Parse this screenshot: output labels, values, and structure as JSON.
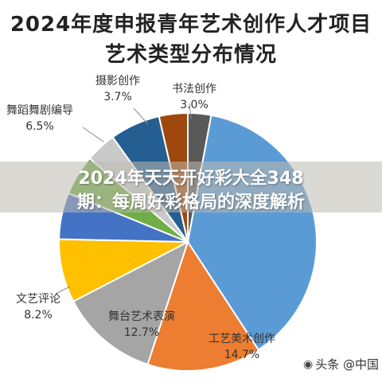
{
  "chart_data": {
    "type": "pie",
    "title": "2024年度申报青年艺术创作人才项目",
    "subtitle": "艺术类型分布情况",
    "slices": [
      {
        "name": "书法创作",
        "label": "3.0%",
        "value": 3.0,
        "color": "#595959"
      },
      {
        "name": "",
        "label": "",
        "value": 39.0,
        "color": "#5b9bd5"
      },
      {
        "name": "工艺美术创作",
        "label": "14.7%",
        "value": 14.7,
        "color": "#ed7d31"
      },
      {
        "name": "舞台艺术表演",
        "label": "12.7%",
        "value": 12.7,
        "color": "#a5a5a5"
      },
      {
        "name": "文艺评论",
        "label": "8.2%",
        "value": 8.2,
        "color": "#ffc000"
      },
      {
        "name": "",
        "label": "",
        "value": 6.0,
        "color": "#4472c4"
      },
      {
        "name": "",
        "label": "",
        "value": 5.2,
        "color": "#70ad47"
      },
      {
        "name": "",
        "label": "",
        "value": 4.0,
        "color": "#c9c9c9"
      },
      {
        "name": "舞蹈舞剧编导",
        "label": "6.5%",
        "value": 6.5,
        "color": "#255e91"
      },
      {
        "name": "摄影创作",
        "label": "3.7%",
        "value": 3.7,
        "color": "#9e480e"
      }
    ]
  },
  "overlay": {
    "line1": "2024年天天开好彩大全348",
    "line2": "期：每周好彩格局的深度解析"
  },
  "watermark": {
    "text": "头条 @中国",
    "icon": "camera-icon"
  }
}
